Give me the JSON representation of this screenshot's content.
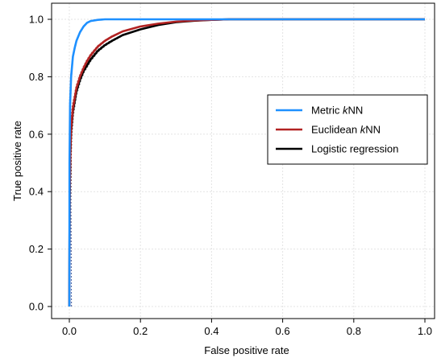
{
  "chart_data": {
    "type": "line",
    "title": "",
    "xlabel": "False positive rate",
    "ylabel": "True positive rate",
    "xlim": [
      0,
      1
    ],
    "ylim": [
      0,
      1
    ],
    "xticks": [
      "0.0",
      "0.2",
      "0.4",
      "0.6",
      "0.8",
      "1.0"
    ],
    "yticks": [
      "0.0",
      "0.2",
      "0.4",
      "0.6",
      "0.8",
      "1.0"
    ],
    "grid": true,
    "legend_position": "center-right",
    "series": [
      {
        "name_parts": [
          "Metric ",
          "k",
          "NN"
        ],
        "color": "#1e90ff",
        "has_confidence_band": true,
        "x": [
          0,
          0.0005,
          0.002,
          0.005,
          0.01,
          0.015,
          0.02,
          0.03,
          0.04,
          0.05,
          0.06,
          0.08,
          0.1,
          0.12,
          0.2,
          0.5,
          1.0
        ],
        "y": [
          0,
          0.5,
          0.7,
          0.8,
          0.87,
          0.9,
          0.925,
          0.955,
          0.975,
          0.988,
          0.994,
          0.998,
          1.0,
          1.0,
          1.0,
          1.0,
          1.0
        ]
      },
      {
        "name_parts": [
          "Euclidean ",
          "k",
          "NN"
        ],
        "color": "#b22222",
        "has_confidence_band": true,
        "x": [
          0,
          0.001,
          0.003,
          0.005,
          0.01,
          0.02,
          0.03,
          0.04,
          0.05,
          0.06,
          0.08,
          0.1,
          0.12,
          0.15,
          0.2,
          0.25,
          0.3,
          0.35,
          0.4,
          0.45,
          0.5,
          1.0
        ],
        "y": [
          0,
          0.4,
          0.55,
          0.62,
          0.69,
          0.76,
          0.8,
          0.83,
          0.855,
          0.875,
          0.905,
          0.925,
          0.94,
          0.958,
          0.975,
          0.985,
          0.992,
          0.996,
          0.998,
          1.0,
          1.0,
          1.0
        ]
      },
      {
        "name_parts": [
          "Logistic regression"
        ],
        "color": "#000000",
        "has_confidence_band": true,
        "x": [
          0,
          0.001,
          0.003,
          0.005,
          0.01,
          0.02,
          0.03,
          0.04,
          0.05,
          0.06,
          0.08,
          0.1,
          0.12,
          0.15,
          0.2,
          0.25,
          0.3,
          0.35,
          0.4,
          0.45,
          0.5,
          1.0
        ],
        "y": [
          0,
          0.38,
          0.54,
          0.61,
          0.68,
          0.75,
          0.79,
          0.82,
          0.84,
          0.86,
          0.89,
          0.91,
          0.925,
          0.945,
          0.965,
          0.98,
          0.99,
          0.995,
          0.998,
          1.0,
          1.0,
          1.0
        ]
      }
    ]
  }
}
